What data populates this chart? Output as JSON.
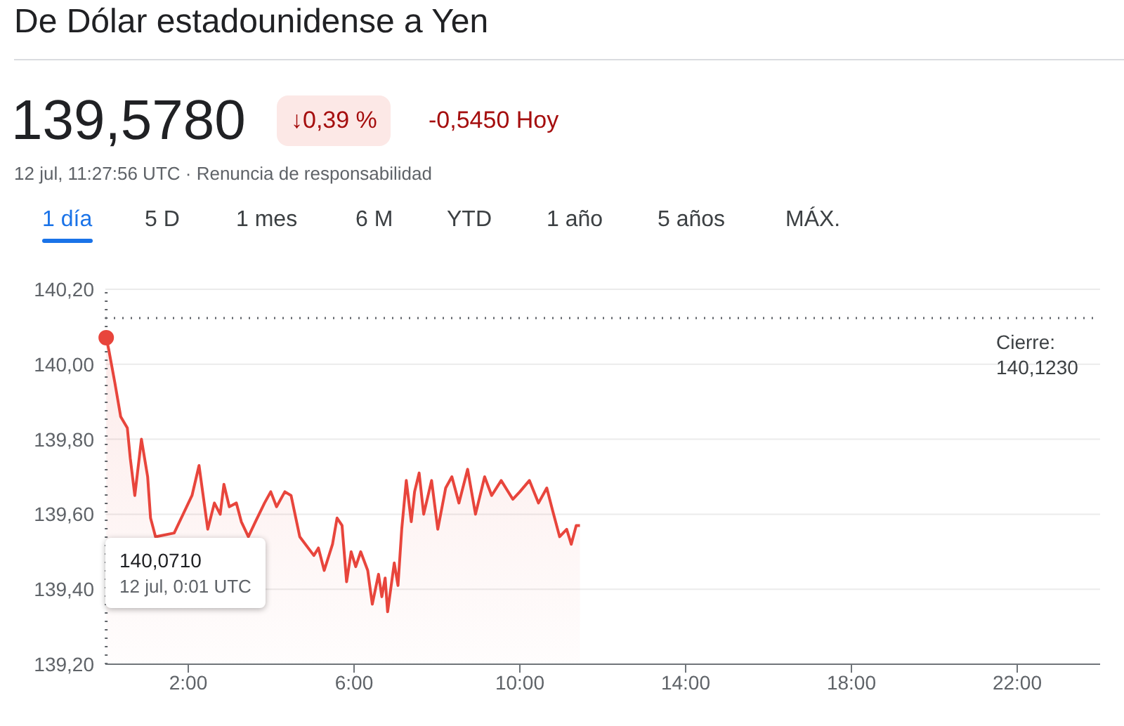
{
  "chart_data": {
    "type": "area",
    "title": "De Dólar estadounidense a Yen",
    "annotations": [
      "139,5780",
      "↓0,39 %",
      "-0,5450 Hoy",
      "12 jul, 11:27:56 UTC · Renuncia de responsabilidad",
      "1 día",
      "5 D",
      "1 mes",
      "6 M",
      "YTD",
      "1 año",
      "5 años",
      "MÁX.",
      "140,0710\n12 jul, 0:01 UTC"
    ],
    "x": [
      0.02,
      0.08,
      0.23,
      0.37,
      0.53,
      0.6,
      0.71,
      0.87,
      1.02,
      1.09,
      1.21,
      1.66,
      2.09,
      2.26,
      2.47,
      2.63,
      2.77,
      2.86,
      2.99,
      3.16,
      3.28,
      3.45,
      3.62,
      3.84,
      3.99,
      4.13,
      4.33,
      4.48,
      4.69,
      5.03,
      5.14,
      5.28,
      5.48,
      5.59,
      5.71,
      5.82,
      5.93,
      6.04,
      6.16,
      6.33,
      6.44,
      6.59,
      6.67,
      6.75,
      6.81,
      6.97,
      7.06,
      7.15,
      7.26,
      7.38,
      7.46,
      7.57,
      7.68,
      7.87,
      8.02,
      8.21,
      8.36,
      8.53,
      8.74,
      8.93,
      9.15,
      9.32,
      9.55,
      9.83,
      10.0,
      10.23,
      10.45,
      10.65,
      10.79,
      10.96,
      11.13,
      11.24,
      11.36,
      11.45
    ],
    "series": [
      {
        "color": "#e8453c",
        "values": [
          140.071,
          140.04,
          139.95,
          139.86,
          139.83,
          139.75,
          139.65,
          139.8,
          139.7,
          139.59,
          139.54,
          139.55,
          139.65,
          139.73,
          139.56,
          139.63,
          139.6,
          139.68,
          139.62,
          139.63,
          139.58,
          139.54,
          139.58,
          139.63,
          139.66,
          139.62,
          139.66,
          139.65,
          139.54,
          139.49,
          139.51,
          139.45,
          139.52,
          139.59,
          139.57,
          139.42,
          139.5,
          139.46,
          139.5,
          139.45,
          139.36,
          139.44,
          139.38,
          139.43,
          139.34,
          139.47,
          139.41,
          139.56,
          139.69,
          139.58,
          139.66,
          139.71,
          139.6,
          139.69,
          139.56,
          139.67,
          139.7,
          139.63,
          139.72,
          139.6,
          139.7,
          139.65,
          139.69,
          139.64,
          139.66,
          139.69,
          139.63,
          139.67,
          139.61,
          139.54,
          139.56,
          139.52,
          139.57,
          139.57
        ]
      }
    ],
    "xlim": [
      0,
      24
    ],
    "xticks": [
      {
        "value": 2,
        "label": "2:00"
      },
      {
        "value": 6,
        "label": "6:00"
      },
      {
        "value": 10,
        "label": "10:00"
      },
      {
        "value": 14,
        "label": "14:00"
      },
      {
        "value": 18,
        "label": "18:00"
      },
      {
        "value": 22,
        "label": "22:00"
      }
    ],
    "ylim": [
      139.2,
      140.2
    ],
    "yticks": [
      {
        "value": 139.2,
        "label": "139,20"
      },
      {
        "value": 139.4,
        "label": "139,40"
      },
      {
        "value": 139.6,
        "label": "139,60"
      },
      {
        "value": 139.8,
        "label": "139,80"
      },
      {
        "value": 140,
        "label": "140,00"
      },
      {
        "value": 140.2,
        "label": "140,20"
      }
    ],
    "ref_lines": [
      {
        "axis": "y",
        "value": 140.123,
        "label": "Cierre:\n140,1230",
        "line_style": "dotted",
        "color": "#5f6368"
      },
      {
        "axis": "x",
        "value": 0.02,
        "label": null,
        "line_style": "dotted",
        "color": "#5f6368"
      }
    ],
    "grid": "y",
    "legend": false,
    "marker": "none",
    "line_style": "solid"
  }
}
